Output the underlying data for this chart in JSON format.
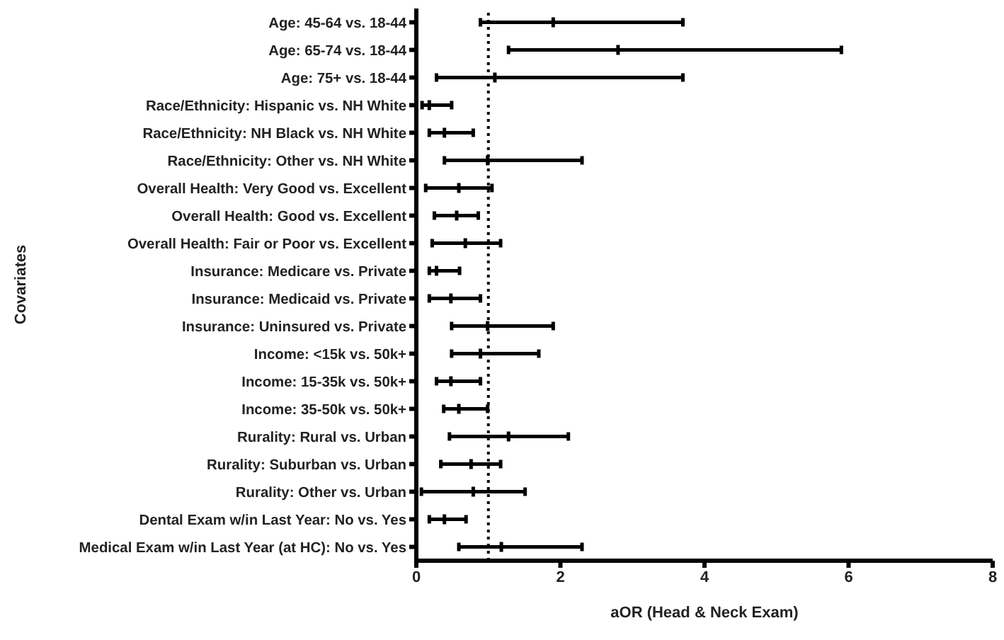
{
  "chart_data": {
    "type": "scatter",
    "orientation": "horizontal",
    "xlabel": "aOR (Head & Neck Exam)",
    "ylabel": "Covariates",
    "categories": [
      "Age: 45-64 vs. 18-44",
      "Age: 65-74 vs. 18-44",
      "Age: 75+ vs. 18-44",
      "Race/Ethnicity: Hispanic vs. NH White",
      "Race/Ethnicity: NH Black vs. NH White",
      "Race/Ethnicity: Other vs. NH White",
      "Overall Health: Very Good  vs. Excellent",
      "Overall Health: Good vs. Excellent",
      "Overall Health: Fair or Poor vs. Excellent",
      "Insurance: Medicare vs. Private",
      "Insurance: Medicaid vs. Private",
      "Insurance: Uninsured vs. Private",
      "Income: <15k vs. 50k+",
      "Income: 15-35k vs. 50k+",
      "Income: 35-50k vs. 50k+",
      "Rurality: Rural vs. Urban",
      "Rurality: Suburban vs. Urban",
      "Rurality: Other vs. Urban",
      "Dental Exam w/in Last Year: No vs. Yes",
      "Medical Exam w/in Last Year (at HC): No vs. Yes"
    ],
    "series": [
      {
        "color": "#000000",
        "values": [
          1.9,
          2.8,
          1.09,
          0.18,
          0.39,
          0.99,
          0.59,
          0.56,
          0.68,
          0.28,
          0.48,
          0.99,
          0.89,
          0.48,
          0.59,
          1.28,
          0.76,
          0.79,
          0.39,
          1.18
        ],
        "errors": [
          [
            0.89,
            3.7
          ],
          [
            1.28,
            5.9
          ],
          [
            0.28,
            3.7
          ],
          [
            0.08,
            0.49
          ],
          [
            0.18,
            0.79
          ],
          [
            0.39,
            2.3
          ],
          [
            0.13,
            1.05
          ],
          [
            0.25,
            0.86
          ],
          [
            0.22,
            1.17
          ],
          [
            0.18,
            0.6
          ],
          [
            0.18,
            0.89
          ],
          [
            0.49,
            1.9
          ],
          [
            0.49,
            1.7
          ],
          [
            0.28,
            0.89
          ],
          [
            0.38,
            0.99
          ],
          [
            0.46,
            2.11
          ],
          [
            0.34,
            1.17
          ],
          [
            0.07,
            1.51
          ],
          [
            0.18,
            0.69
          ],
          [
            0.59,
            2.3
          ]
        ]
      }
    ],
    "xlim": [
      0,
      8
    ],
    "xticks": [
      0,
      2,
      4,
      6,
      8
    ],
    "ref_lines": [
      {
        "axis": "x",
        "value": 1,
        "line_style": "dotted",
        "color": "#000000"
      }
    ]
  }
}
